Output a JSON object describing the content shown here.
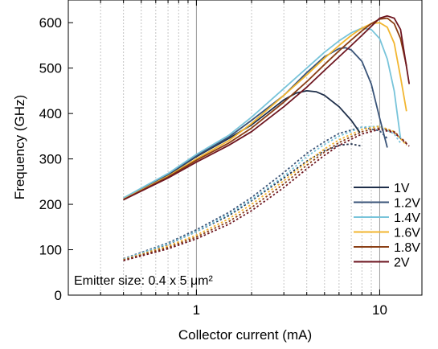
{
  "chart_data": {
    "type": "line",
    "xlabel": "Collector current (mA)",
    "ylabel": "Frequency (GHz)",
    "x_scale": "log",
    "xlim": [
      0.2,
      17
    ],
    "ylim": [
      0,
      650
    ],
    "x_ticks": [
      {
        "value": 1,
        "label": "1"
      },
      {
        "value": 10,
        "label": "10"
      }
    ],
    "y_ticks": [
      {
        "value": 0,
        "label": "0"
      },
      {
        "value": 100,
        "label": "100"
      },
      {
        "value": 200,
        "label": "200"
      },
      {
        "value": 300,
        "label": "300"
      },
      {
        "value": 400,
        "label": "400"
      },
      {
        "value": 500,
        "label": "500"
      },
      {
        "value": 600,
        "label": "600"
      }
    ],
    "grid": "x-major-minor-dotted",
    "legend_position": "bottom-right",
    "annotation": "Emitter size: 0.4 x 5 μm²",
    "series": [
      {
        "name": "1V",
        "color": "#1f2f4a",
        "ft": {
          "x": [
            0.4,
            0.7,
            1.0,
            1.5,
            2.0,
            2.5,
            3.0,
            3.5,
            4.0,
            4.5,
            5.0,
            6.0,
            7.0,
            7.8
          ],
          "y": [
            210,
            265,
            305,
            345,
            375,
            405,
            430,
            445,
            450,
            448,
            440,
            415,
            385,
            358
          ]
        },
        "fmax": {
          "x": [
            0.4,
            0.7,
            1.0,
            1.5,
            2.0,
            3.0,
            4.0,
            5.0,
            6.0,
            7.0,
            8.0
          ],
          "y": [
            78,
            112,
            140,
            175,
            208,
            258,
            295,
            318,
            330,
            333,
            328
          ]
        }
      },
      {
        "name": "1.2V",
        "color": "#3a5478",
        "ft": {
          "x": [
            0.4,
            0.7,
            1.0,
            1.5,
            2.0,
            3.0,
            4.0,
            5.0,
            6.0,
            6.5,
            7.0,
            8.0,
            9.0,
            10.0,
            11.0
          ],
          "y": [
            211,
            266,
            307,
            348,
            385,
            440,
            490,
            525,
            543,
            545,
            540,
            515,
            465,
            390,
            325
          ]
        },
        "fmax": {
          "x": [
            0.4,
            0.7,
            1.0,
            1.5,
            2.0,
            3.0,
            4.0,
            5.0,
            6.0,
            8.0,
            10.0,
            11.0
          ],
          "y": [
            80,
            115,
            144,
            182,
            215,
            270,
            312,
            338,
            356,
            370,
            362,
            345
          ]
        }
      },
      {
        "name": "1.4V",
        "color": "#78c4da",
        "ft": {
          "x": [
            0.4,
            0.7,
            1.0,
            1.5,
            2.0,
            3.0,
            4.0,
            5.0,
            6.0,
            7.0,
            8.0,
            9.0,
            10.0,
            11.0,
            12.0,
            13.0
          ],
          "y": [
            214,
            268,
            310,
            352,
            392,
            455,
            500,
            535,
            560,
            578,
            588,
            585,
            565,
            520,
            450,
            345
          ]
        },
        "fmax": {
          "x": [
            0.4,
            0.7,
            1.0,
            1.5,
            2.0,
            3.0,
            4.0,
            5.0,
            6.0,
            8.0,
            10.0,
            12.0,
            13.0
          ],
          "y": [
            79,
            113,
            140,
            178,
            210,
            262,
            305,
            332,
            350,
            370,
            372,
            355,
            335
          ]
        }
      },
      {
        "name": "1.6V",
        "color": "#f2b630",
        "ft": {
          "x": [
            0.4,
            0.7,
            1.0,
            1.5,
            2.0,
            3.0,
            4.0,
            5.0,
            6.0,
            7.0,
            8.0,
            9.0,
            10.0,
            11.0,
            12.0,
            13.0,
            14.0
          ],
          "y": [
            211,
            262,
            300,
            340,
            378,
            440,
            485,
            522,
            550,
            572,
            588,
            598,
            600,
            590,
            555,
            480,
            405
          ]
        },
        "fmax": {
          "x": [
            0.4,
            0.7,
            1.0,
            1.5,
            2.0,
            3.0,
            4.0,
            5.0,
            6.0,
            8.0,
            10.0,
            12.0,
            14.0
          ],
          "y": [
            78,
            108,
            132,
            168,
            200,
            252,
            293,
            322,
            342,
            365,
            372,
            360,
            330
          ]
        }
      },
      {
        "name": "1.8V",
        "color": "#8a3e14",
        "ft": {
          "x": [
            0.4,
            0.7,
            1.0,
            1.5,
            2.0,
            3.0,
            4.0,
            5.0,
            6.0,
            7.0,
            8.0,
            9.0,
            10.0,
            11.0,
            12.0,
            13.0,
            14.0
          ],
          "y": [
            210,
            260,
            297,
            335,
            368,
            425,
            470,
            508,
            538,
            562,
            582,
            598,
            608,
            610,
            598,
            565,
            505
          ]
        },
        "fmax": {
          "x": [
            0.4,
            0.7,
            1.0,
            1.5,
            2.0,
            3.0,
            4.0,
            5.0,
            6.0,
            8.0,
            10.0,
            12.0,
            14.0
          ],
          "y": [
            77,
            105,
            128,
            162,
            193,
            245,
            286,
            315,
            336,
            360,
            368,
            360,
            335
          ]
        }
      },
      {
        "name": "2V",
        "color": "#6e1620",
        "ft": {
          "x": [
            0.4,
            0.7,
            1.0,
            1.5,
            2.0,
            3.0,
            4.0,
            5.0,
            6.0,
            7.0,
            8.0,
            9.0,
            10.0,
            11.0,
            12.0,
            13.0,
            14.5
          ],
          "y": [
            210,
            258,
            293,
            330,
            360,
            415,
            458,
            495,
            525,
            550,
            572,
            592,
            610,
            615,
            610,
            585,
            465
          ]
        },
        "fmax": {
          "x": [
            0.4,
            0.7,
            1.0,
            1.5,
            2.0,
            3.0,
            4.0,
            5.0,
            6.0,
            8.0,
            10.0,
            12.0,
            14.5
          ],
          "y": [
            76,
            102,
            124,
            156,
            186,
            237,
            278,
            308,
            330,
            355,
            365,
            358,
            328
          ]
        }
      }
    ]
  }
}
